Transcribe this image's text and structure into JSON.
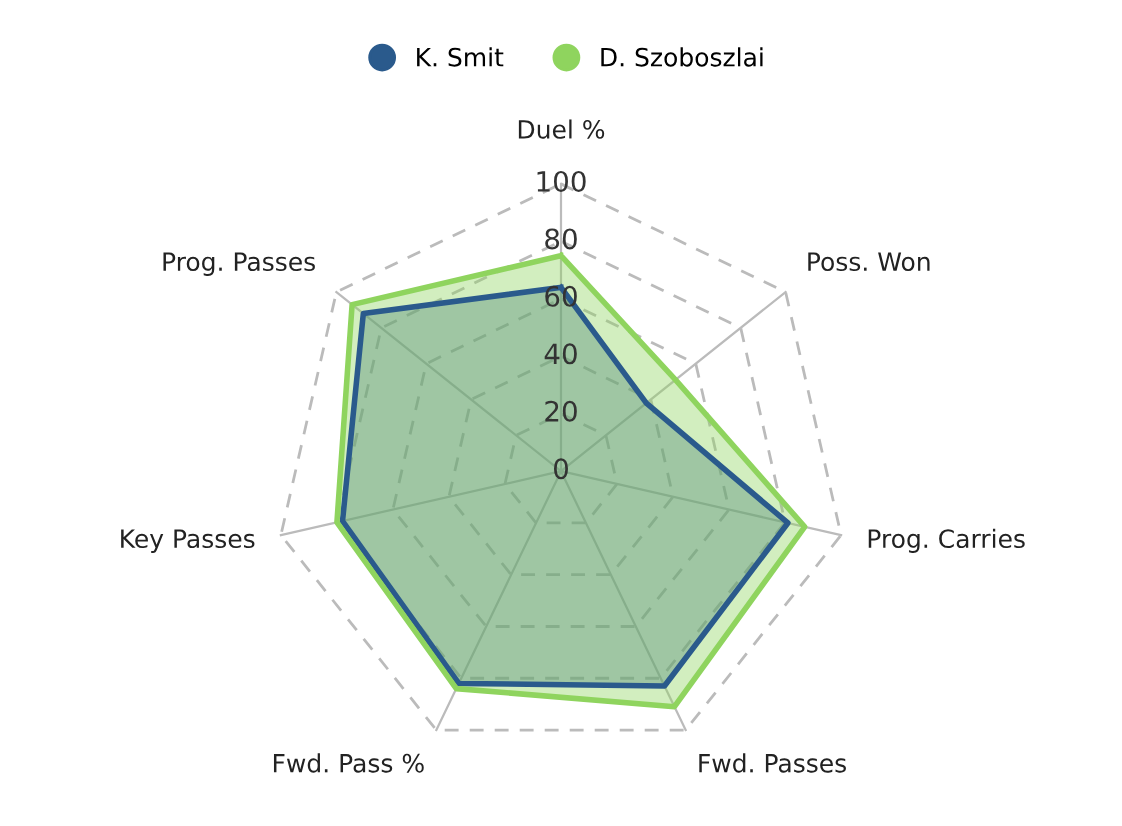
{
  "chart_data": {
    "type": "radar",
    "categories": [
      "Duel %",
      "Poss. Won",
      "Prog. Carries",
      "Fwd. Passes",
      "Fwd. Pass %",
      "Key Passes",
      "Prog. Passes"
    ],
    "series": [
      {
        "name": "K. Smit",
        "color": "#2a5a8c",
        "values": [
          64,
          38,
          81,
          83,
          82,
          78,
          88
        ]
      },
      {
        "name": "D. Szoboszlai",
        "color": "#8fd45e",
        "values": [
          75,
          51,
          87,
          91,
          84,
          80,
          93
        ]
      }
    ],
    "ylim": [
      0,
      100
    ],
    "yticks": [
      0,
      20,
      40,
      60,
      80,
      100
    ],
    "grid": true,
    "legend": "top",
    "marker": "none",
    "line_style": "solid"
  }
}
